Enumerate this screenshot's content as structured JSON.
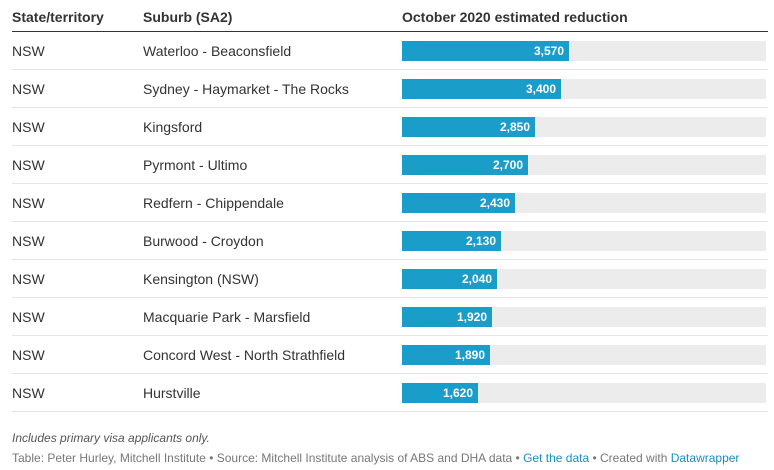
{
  "chart_data": {
    "type": "table",
    "columns": [
      "State/territory",
      "Suburb (SA2)",
      "October 2020 estimated reduction"
    ],
    "rows": [
      {
        "state": "NSW",
        "suburb": "Waterloo - Beaconsfield",
        "value": 3570,
        "label": "3,570"
      },
      {
        "state": "NSW",
        "suburb": "Sydney - Haymarket - The Rocks",
        "value": 3400,
        "label": "3,400"
      },
      {
        "state": "NSW",
        "suburb": "Kingsford",
        "value": 2850,
        "label": "2,850"
      },
      {
        "state": "NSW",
        "suburb": "Pyrmont - Ultimo",
        "value": 2700,
        "label": "2,700"
      },
      {
        "state": "NSW",
        "suburb": "Redfern - Chippendale",
        "value": 2430,
        "label": "2,430"
      },
      {
        "state": "NSW",
        "suburb": "Burwood - Croydon",
        "value": 2130,
        "label": "2,130"
      },
      {
        "state": "NSW",
        "suburb": "Kensington (NSW)",
        "value": 2040,
        "label": "2,040"
      },
      {
        "state": "NSW",
        "suburb": "Macquarie Park - Marsfield",
        "value": 1920,
        "label": "1,920"
      },
      {
        "state": "NSW",
        "suburb": "Concord West - North Strathfield",
        "value": 1890,
        "label": "1,890"
      },
      {
        "state": "NSW",
        "suburb": "Hurstville",
        "value": 1620,
        "label": "1,620"
      }
    ],
    "bar_max": 7800,
    "bar_color": "#1b9dc9",
    "track_color": "#ececec"
  },
  "notes": "Includes primary visa applicants only.",
  "footer": {
    "source": "Table: Peter Hurley, Mitchell Institute • Source: Mitchell Institute analysis of ABS and DHA data • ",
    "get_data": "Get the data",
    "created": " • Created with ",
    "datawrapper": "Datawrapper"
  }
}
